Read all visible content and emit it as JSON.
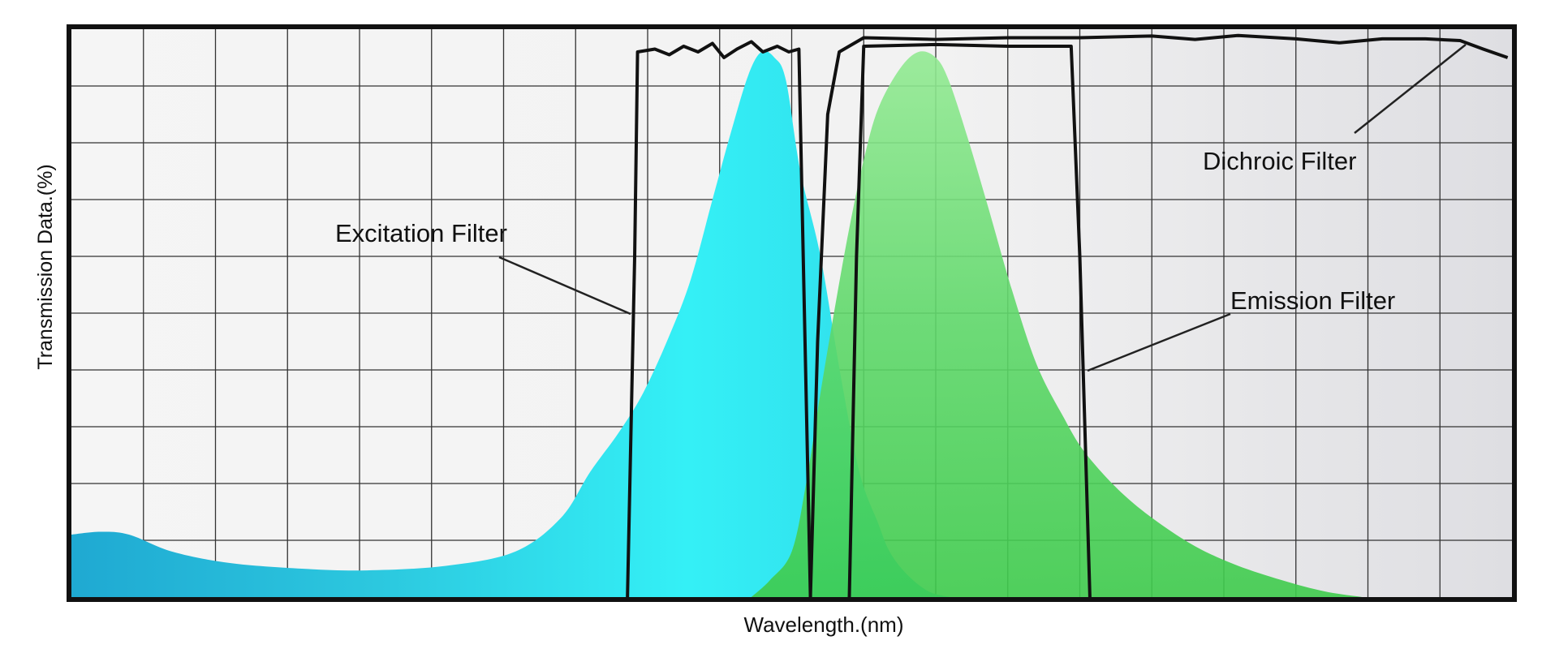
{
  "chart_data": {
    "type": "area",
    "title": "",
    "xlabel": "Wavelength.(nm)",
    "ylabel": "Transmission Data.(%)",
    "xlim": [
      0,
      100
    ],
    "ylim": [
      0,
      100
    ],
    "grid": true,
    "tick_labels_shown": false,
    "colors": {
      "excitation_spectrum": "#33e4ee",
      "excitation_spectrum_left": "#1fa9d2",
      "emission_spectrum": "#3ecb4c",
      "emission_spectrum_top": "#93ea93",
      "filter_lines": "#111111",
      "background": "#efefef"
    },
    "areas": [
      {
        "key": "excitation_spectrum",
        "points": [
          [
            0,
            11
          ],
          [
            2,
            11.5
          ],
          [
            4,
            11
          ],
          [
            7,
            8
          ],
          [
            11,
            6
          ],
          [
            16,
            5
          ],
          [
            20.5,
            4.7
          ],
          [
            26,
            5.5
          ],
          [
            30.8,
            8
          ],
          [
            34,
            14
          ],
          [
            36,
            22
          ],
          [
            38,
            29
          ],
          [
            39.7,
            36
          ],
          [
            41.5,
            46
          ],
          [
            43,
            56
          ],
          [
            44.5,
            70
          ],
          [
            45.8,
            82
          ],
          [
            47,
            92
          ],
          [
            47.9,
            96
          ],
          [
            48.8,
            95
          ],
          [
            49.6,
            91
          ],
          [
            50.6,
            75
          ],
          [
            52,
            60
          ],
          [
            53.4,
            39
          ],
          [
            54.7,
            22
          ],
          [
            56,
            13
          ],
          [
            56.8,
            8
          ],
          [
            58,
            4
          ],
          [
            59.5,
            1
          ],
          [
            61,
            0
          ]
        ]
      },
      {
        "key": "emission_spectrum",
        "points": [
          [
            47.2,
            0
          ],
          [
            48.5,
            3
          ],
          [
            50,
            8
          ],
          [
            51,
            20
          ],
          [
            52,
            36
          ],
          [
            53,
            51
          ],
          [
            54,
            65
          ],
          [
            55,
            77
          ],
          [
            56,
            86
          ],
          [
            57.5,
            93
          ],
          [
            58.8,
            96
          ],
          [
            60,
            95
          ],
          [
            60.9,
            91
          ],
          [
            62.2,
            81
          ],
          [
            63.6,
            69
          ],
          [
            65.3,
            54
          ],
          [
            67,
            41
          ],
          [
            68.8,
            32
          ],
          [
            70.5,
            25
          ],
          [
            73.5,
            17
          ],
          [
            77.3,
            10
          ],
          [
            80.5,
            6
          ],
          [
            84,
            3
          ],
          [
            87,
            1
          ],
          [
            89.6,
            0
          ]
        ]
      }
    ],
    "lines": [
      {
        "key": "excitation_filter",
        "points": [
          [
            38.6,
            0
          ],
          [
            39.1,
            60
          ],
          [
            39.3,
            96
          ],
          [
            40.5,
            96.5
          ],
          [
            41.5,
            95.5
          ],
          [
            42.5,
            97
          ],
          [
            43.5,
            96
          ],
          [
            44.5,
            97.5
          ],
          [
            45.3,
            95
          ],
          [
            46.2,
            96.5
          ],
          [
            47.2,
            97.8
          ],
          [
            48,
            96
          ],
          [
            49,
            97
          ],
          [
            49.8,
            96
          ],
          [
            50.5,
            96.5
          ],
          [
            50.8,
            60
          ],
          [
            51.3,
            0
          ]
        ]
      },
      {
        "key": "emission_filter",
        "points": [
          [
            54,
            0
          ],
          [
            54.5,
            60
          ],
          [
            55,
            97
          ],
          [
            60,
            97.3
          ],
          [
            65,
            97
          ],
          [
            69.4,
            97
          ],
          [
            70,
            60
          ],
          [
            70.7,
            0
          ]
        ]
      },
      {
        "key": "dichroic_filter",
        "points": [
          [
            51.3,
            0
          ],
          [
            51.8,
            45
          ],
          [
            52.5,
            85
          ],
          [
            53.3,
            96
          ],
          [
            55,
            98.5
          ],
          [
            60,
            98.2
          ],
          [
            65,
            98.5
          ],
          [
            70,
            98.5
          ],
          [
            75,
            98.8
          ],
          [
            78,
            98.2
          ],
          [
            81,
            98.9
          ],
          [
            85,
            98.3
          ],
          [
            88,
            97.6
          ],
          [
            91,
            98.3
          ],
          [
            94,
            98.3
          ],
          [
            96.4,
            98
          ],
          [
            98,
            96.5
          ],
          [
            99.7,
            95
          ]
        ]
      }
    ],
    "annotations": [
      {
        "key": "excitation_filter",
        "text": "Excitation Filter"
      },
      {
        "key": "emission_filter",
        "text": "Emission Filter"
      },
      {
        "key": "dichroic_filter",
        "text": "Dichroic Filter"
      }
    ]
  }
}
